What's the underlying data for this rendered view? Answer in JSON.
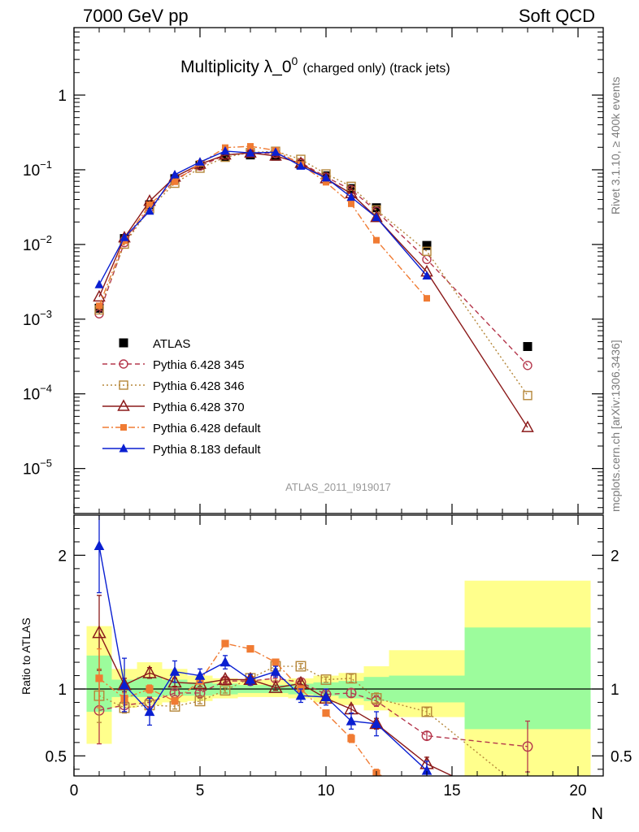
{
  "header": {
    "left": "7000 GeV pp",
    "right": "Soft QCD"
  },
  "side": {
    "rivet": "Rivet 3.1.10, ≥ 400k events",
    "mcplots": "mcplots.cern.ch [arXiv:1306.3436]"
  },
  "chart_data": {
    "type": "scatter",
    "title": {
      "main": "Multiplicity λ_0",
      "superscript": "0",
      "suffix": "(charged only) (track jets)"
    },
    "analysis_label": "ATLAS_2011_I919017",
    "xlabel": "N",
    "ylabel_ratio": "Ratio to ATLAS",
    "xlim": [
      0,
      21
    ],
    "x_ticks": [
      0,
      5,
      10,
      15,
      20
    ],
    "main_panel": {
      "yscale": "log",
      "ylim": [
        2.5e-06,
        8
      ],
      "y_ticks": [
        {
          "value": 1,
          "label": "1"
        },
        {
          "value": 0.1,
          "label": "10",
          "sup": "−1"
        },
        {
          "value": 0.01,
          "label": "10",
          "sup": "−2"
        },
        {
          "value": 0.001,
          "label": "10",
          "sup": "−3"
        },
        {
          "value": 0.0001,
          "label": "10",
          "sup": "−4"
        },
        {
          "value": 1e-05,
          "label": "10",
          "sup": "−5"
        }
      ]
    },
    "ratio_panel": {
      "ylim": [
        0.35,
        2.3
      ],
      "y_ticks": [
        0.5,
        1,
        2
      ],
      "y_tick_labels": [
        "0.5",
        "1",
        "2"
      ],
      "bands": [
        {
          "x0": 0.5,
          "x1": 1.5,
          "y_lo": 0.59,
          "y_hi": 1.47,
          "g_lo": 0.83,
          "g_hi": 1.25
        },
        {
          "x0": 1.5,
          "x1": 2.5,
          "y_lo": 0.86,
          "y_hi": 1.15,
          "g_lo": 0.94,
          "g_hi": 1.07
        },
        {
          "x0": 2.5,
          "x1": 3.5,
          "y_lo": 0.88,
          "y_hi": 1.2,
          "g_lo": 0.94,
          "g_hi": 1.09
        },
        {
          "x0": 3.5,
          "x1": 4.5,
          "y_lo": 0.9,
          "y_hi": 1.15,
          "g_lo": 0.95,
          "g_hi": 1.07
        },
        {
          "x0": 4.5,
          "x1": 5.5,
          "y_lo": 0.91,
          "y_hi": 1.1,
          "g_lo": 0.95,
          "g_hi": 1.05
        },
        {
          "x0": 5.5,
          "x1": 6.5,
          "y_lo": 0.93,
          "y_hi": 1.08,
          "g_lo": 0.96,
          "g_hi": 1.04
        },
        {
          "x0": 6.5,
          "x1": 7.5,
          "y_lo": 0.94,
          "y_hi": 1.07,
          "g_lo": 0.97,
          "g_hi": 1.03
        },
        {
          "x0": 7.5,
          "x1": 8.5,
          "y_lo": 0.94,
          "y_hi": 1.07,
          "g_lo": 0.97,
          "g_hi": 1.03
        },
        {
          "x0": 8.5,
          "x1": 9.5,
          "y_lo": 0.93,
          "y_hi": 1.08,
          "g_lo": 0.96,
          "g_hi": 1.04
        },
        {
          "x0": 9.5,
          "x1": 10.5,
          "y_lo": 0.9,
          "y_hi": 1.1,
          "g_lo": 0.95,
          "g_hi": 1.05
        },
        {
          "x0": 10.5,
          "x1": 11.5,
          "y_lo": 0.88,
          "y_hi": 1.12,
          "g_lo": 0.93,
          "g_hi": 1.06
        },
        {
          "x0": 11.5,
          "x1": 12.5,
          "y_lo": 0.84,
          "y_hi": 1.17,
          "g_lo": 0.91,
          "g_hi": 1.09
        },
        {
          "x0": 12.5,
          "x1": 15.5,
          "y_lo": 0.79,
          "y_hi": 1.29,
          "g_lo": 0.9,
          "g_hi": 1.1
        },
        {
          "x0": 15.5,
          "x1": 20.5,
          "y_lo": 0.35,
          "y_hi": 1.81,
          "g_lo": 0.7,
          "g_hi": 1.46
        }
      ]
    },
    "series": [
      {
        "name": "ATLAS",
        "color": "#000000",
        "marker": "square-filled",
        "line": "none",
        "x": [
          1,
          2,
          3,
          4,
          5,
          6,
          7,
          8,
          9,
          10,
          11,
          12,
          14,
          18
        ],
        "y": [
          0.0014,
          0.012,
          0.034,
          0.076,
          0.115,
          0.148,
          0.158,
          0.152,
          0.118,
          0.083,
          0.056,
          0.031,
          0.0097,
          0.00043
        ],
        "ratio": [
          1,
          1,
          1,
          1,
          1,
          1,
          1,
          1,
          1,
          1,
          1,
          1,
          1,
          1
        ]
      },
      {
        "name": "Pythia 6.428 345",
        "color": "#b5384d",
        "marker": "circle-open",
        "line": "dashed",
        "x": [
          1,
          2,
          3,
          4,
          5,
          6,
          7,
          8,
          9,
          10,
          11,
          12,
          14,
          18
        ],
        "y": [
          0.00118,
          0.0106,
          0.031,
          0.074,
          0.112,
          0.157,
          0.168,
          0.165,
          0.125,
          0.08,
          0.054,
          0.028,
          0.0063,
          0.00024
        ],
        "ratio": [
          0.84,
          0.88,
          0.9,
          0.97,
          0.97,
          1.06,
          1.06,
          1.08,
          1.05,
          0.96,
          0.97,
          0.91,
          0.65,
          0.57
        ],
        "ratio_err": [
          0.25,
          0.05,
          0.04,
          0.02,
          0.02,
          0.02,
          0.02,
          0.02,
          0.02,
          0.02,
          0.03,
          0.04,
          0.03,
          0.19
        ]
      },
      {
        "name": "Pythia 6.428 346",
        "color": "#b5873a",
        "marker": "square-open",
        "line": "dotted",
        "x": [
          1,
          2,
          3,
          4,
          5,
          6,
          7,
          8,
          9,
          10,
          11,
          12,
          14,
          18
        ],
        "y": [
          0.00133,
          0.0101,
          0.03,
          0.066,
          0.105,
          0.147,
          0.17,
          0.177,
          0.138,
          0.088,
          0.06,
          0.029,
          0.0081,
          9.5e-05
        ],
        "ratio": [
          0.95,
          0.86,
          0.88,
          0.87,
          0.91,
          0.99,
          1.08,
          1.17,
          1.17,
          1.07,
          1.08,
          0.93,
          0.83,
          0.22
        ],
        "ratio_err": [
          0.2,
          0.04,
          0.03,
          0.02,
          0.02,
          0.02,
          0.02,
          0.02,
          0.02,
          0.02,
          0.03,
          0.04,
          0.03,
          0.05
        ]
      },
      {
        "name": "Pythia 6.428 370",
        "color": "#8b1a1a",
        "marker": "triangle-open",
        "line": "solid",
        "x": [
          1,
          2,
          3,
          4,
          5,
          6,
          7,
          8,
          9,
          10,
          11,
          12,
          14,
          18
        ],
        "y": [
          0.00199,
          0.0123,
          0.038,
          0.08,
          0.119,
          0.158,
          0.168,
          0.153,
          0.122,
          0.076,
          0.048,
          0.023,
          0.0043,
          3.55e-05
        ],
        "ratio": [
          1.42,
          1.03,
          1.12,
          1.05,
          1.04,
          1.07,
          1.07,
          1.01,
          1.04,
          0.93,
          0.85,
          0.74,
          0.44,
          0.083
        ],
        "ratio_err": [
          0.28,
          0.05,
          0.04,
          0.03,
          0.02,
          0.02,
          0.02,
          0.02,
          0.02,
          0.02,
          0.03,
          0.04,
          0.05,
          0.05
        ]
      },
      {
        "name": "Pythia 6.428 default",
        "color": "#f07b33",
        "marker": "square-filled-small",
        "line": "dashdot",
        "x": [
          1,
          2,
          3,
          4,
          5,
          6,
          7,
          8,
          9,
          10,
          11,
          12,
          14
        ],
        "y": [
          0.00151,
          0.0112,
          0.034,
          0.069,
          0.122,
          0.198,
          0.206,
          0.182,
          0.118,
          0.068,
          0.035,
          0.0114,
          0.0019
        ],
        "ratio": [
          1.08,
          0.93,
          1.0,
          0.91,
          1.06,
          1.34,
          1.3,
          1.2,
          1.0,
          0.82,
          0.63,
          0.37,
          0.2
        ],
        "ratio_err": [
          0.22,
          0.04,
          0.03,
          0.02,
          0.02,
          0.02,
          0.02,
          0.02,
          0.02,
          0.02,
          0.03,
          0.03,
          0.03
        ]
      },
      {
        "name": "Pythia 8.183 default",
        "color": "#0a1fd1",
        "marker": "triangle-filled",
        "line": "solid",
        "x": [
          1,
          2,
          3,
          4,
          5,
          6,
          7,
          8,
          9,
          10,
          11,
          12,
          14
        ],
        "y": [
          0.0029,
          0.0124,
          0.028,
          0.086,
          0.127,
          0.178,
          0.168,
          0.172,
          0.112,
          0.078,
          0.043,
          0.023,
          0.0038
        ],
        "ratio": [
          2.07,
          1.03,
          0.83,
          1.13,
          1.1,
          1.2,
          1.07,
          1.13,
          0.95,
          0.94,
          0.76,
          0.74,
          0.39
        ],
        "ratio_err": [
          0.35,
          0.2,
          0.1,
          0.08,
          0.05,
          0.05,
          0.04,
          0.04,
          0.05,
          0.06,
          0.06,
          0.09,
          0.07
        ]
      }
    ]
  }
}
